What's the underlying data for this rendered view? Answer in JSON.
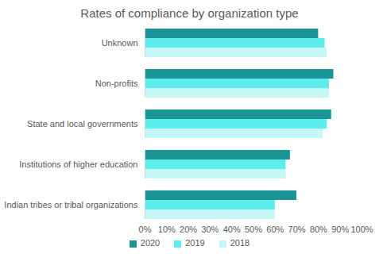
{
  "chart_data": {
    "type": "bar",
    "title": "Rates of compliance by organization type",
    "orientation": "horizontal",
    "categories": [
      "Unknown",
      "Non-profits",
      "State and local governments",
      "Institutions of higher education",
      "Indian tribes or tribal organizations"
    ],
    "series": [
      {
        "name": "2020",
        "color": "#1a9494",
        "values": [
          80,
          87,
          86,
          67,
          70
        ]
      },
      {
        "name": "2019",
        "color": "#5eeded",
        "values": [
          83,
          85,
          84,
          65,
          60
        ]
      },
      {
        "name": "2018",
        "color": "#c6f7f7",
        "values": [
          84,
          85,
          82,
          65,
          60
        ]
      }
    ],
    "xlim": [
      0,
      100
    ],
    "xticks": [
      {
        "value": 0,
        "label": "0%"
      },
      {
        "value": 10,
        "label": "10%"
      },
      {
        "value": 20,
        "label": "20%"
      },
      {
        "value": 30,
        "label": "30%"
      },
      {
        "value": 40,
        "label": "40%"
      },
      {
        "value": 50,
        "label": "50%"
      },
      {
        "value": 60,
        "label": "60%"
      },
      {
        "value": 70,
        "label": "70%"
      },
      {
        "value": 80,
        "label": "80%"
      },
      {
        "value": 90,
        "label": "90%"
      },
      {
        "value": 100,
        "label": "100%"
      }
    ],
    "grid": false,
    "legend": "bottom"
  }
}
